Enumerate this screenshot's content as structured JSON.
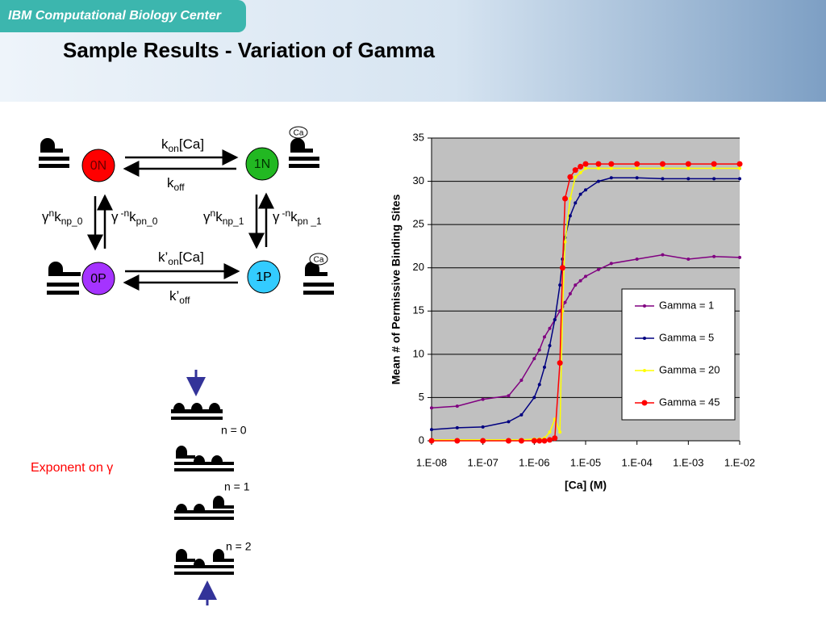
{
  "header": {
    "tag": "IBM Computational Biology Center",
    "title": "Sample Results - Variation of Gamma"
  },
  "diagram": {
    "states": [
      "0N",
      "1N",
      "0P",
      "1P"
    ],
    "ca": [
      "Ca",
      "Ca"
    ],
    "rates": [
      {
        "base": "k",
        "sub": "on",
        "tail": "[Ca]"
      },
      {
        "base": "k",
        "sub": "off"
      },
      {
        "pre": "γ",
        "sup": "n",
        "base": "k",
        "sub": "np_0"
      },
      {
        "pre": "γ",
        "sup": "-n",
        "base": "k",
        "sub": "pn_0"
      },
      {
        "pre": "γ",
        "sup": "n",
        "base": "k",
        "sub": "np_1"
      },
      {
        "pre": "γ",
        "sup": "-n",
        "base": "k",
        "sub": "pn _1"
      },
      {
        "base": "k’",
        "sub": "on",
        "tail": "[Ca]"
      },
      {
        "base": "k’",
        "sub": "off"
      }
    ],
    "exponent_label": "Exponent on γ",
    "n_labels": [
      "n = 0",
      "n = 1",
      "n = 2"
    ]
  },
  "chart_data": {
    "type": "line",
    "xscale": "log",
    "xlabel": "[Ca] (M)",
    "ylabel": "Mean # of Permissive Binding Sites",
    "x": [
      1e-08,
      3.16e-08,
      1e-07,
      3.16e-07,
      5.62e-07,
      1e-06,
      1.26e-06,
      1.58e-06,
      2e-06,
      2.51e-06,
      3.16e-06,
      3.55e-06,
      3.98e-06,
      5.01e-06,
      6.31e-06,
      7.94e-06,
      1e-05,
      1.78e-05,
      3.16e-05,
      0.0001,
      0.000316,
      0.001,
      0.00316,
      0.01
    ],
    "series": [
      {
        "name": "Gamma = 1",
        "color": "#800080",
        "values": [
          3.8,
          4.0,
          4.8,
          5.2,
          7.0,
          9.5,
          10.5,
          12,
          13,
          14,
          15,
          15.5,
          16,
          17,
          18,
          18.5,
          19,
          19.8,
          20.5,
          21,
          21.5,
          21,
          21.3,
          21.2
        ]
      },
      {
        "name": "Gamma = 5",
        "color": "#000080",
        "values": [
          1.3,
          1.5,
          1.6,
          2.2,
          3,
          5,
          6.5,
          8.5,
          11,
          14,
          18,
          21,
          23.5,
          26,
          27.5,
          28.5,
          29,
          30,
          30.4,
          30.4,
          30.3,
          30.3,
          30.3,
          30.3
        ]
      },
      {
        "name": "Gamma = 20",
        "color": "#ffff00",
        "values": [
          0.1,
          0.1,
          0.1,
          0.1,
          0.1,
          0.2,
          0.2,
          0.3,
          1,
          2.5,
          1,
          15,
          23,
          28,
          30.5,
          31,
          31.5,
          31.5,
          31.5,
          31.5,
          31.5,
          31.5,
          31.5,
          31.5
        ]
      },
      {
        "name": "Gamma = 45",
        "color": "#ff0000",
        "values": [
          0,
          0,
          0,
          0,
          0,
          0,
          0,
          0,
          0.1,
          0.3,
          9,
          20,
          28,
          30.5,
          31.3,
          31.7,
          32,
          32,
          32,
          32,
          32,
          32,
          32,
          32
        ]
      }
    ],
    "xlim": [
      1e-08,
      0.01
    ],
    "xticks": [
      {
        "value": 1e-08,
        "label": "1.E-08"
      },
      {
        "value": 1e-07,
        "label": "1.E-07"
      },
      {
        "value": 1e-06,
        "label": "1.E-06"
      },
      {
        "value": 1e-05,
        "label": "1.E-05"
      },
      {
        "value": 0.0001,
        "label": "1.E-04"
      },
      {
        "value": 0.001,
        "label": "1.E-03"
      },
      {
        "value": 0.01,
        "label": "1.E-02"
      }
    ],
    "ylim": [
      0,
      35
    ],
    "yticks": [
      0,
      5,
      10,
      15,
      20,
      25,
      30,
      35
    ],
    "grid": true,
    "legend": "lower right"
  }
}
